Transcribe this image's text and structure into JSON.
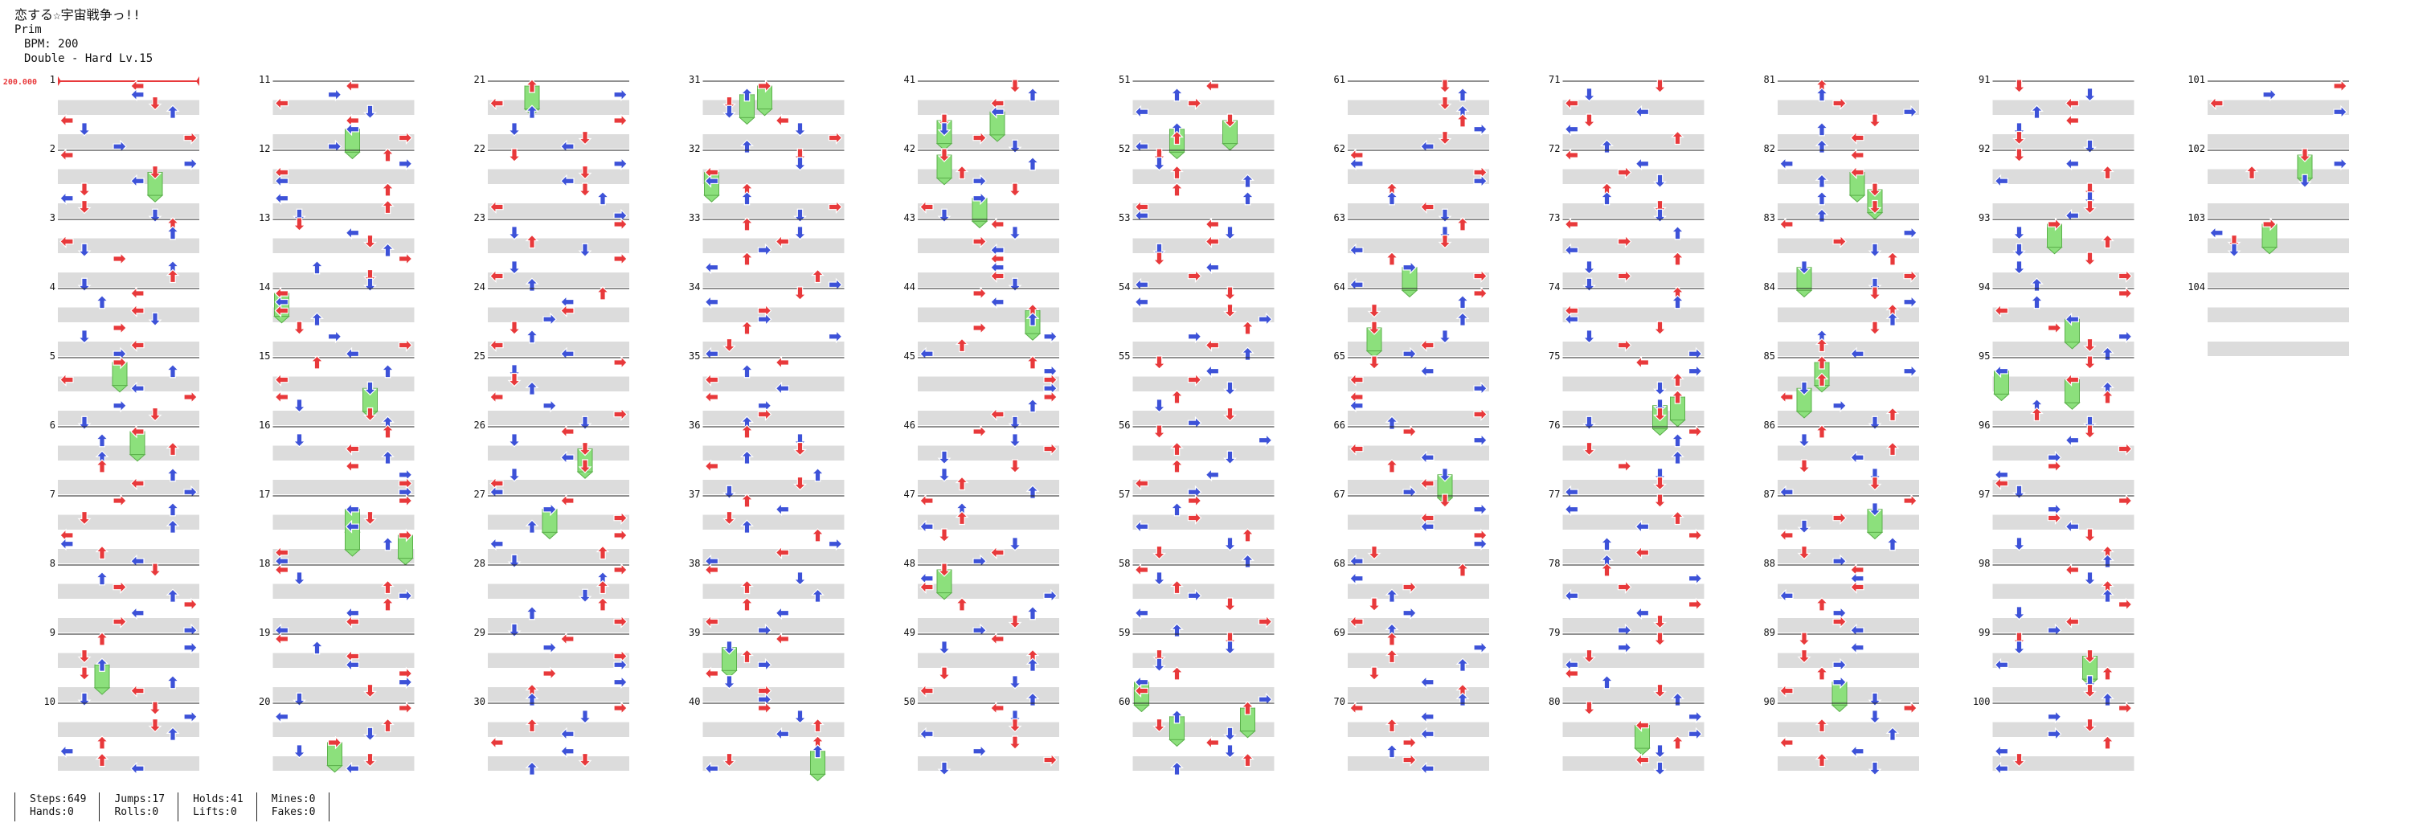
{
  "header": {
    "title": "恋する☆宇宙戦争っ!!",
    "artist": "Prim",
    "bpm": "BPM: 200",
    "difficulty": "Double - Hard Lv.15"
  },
  "bpm_marker": "200.000",
  "colors": {
    "red": "#e8393b",
    "blue": "#3d52d8",
    "hold": "#8ce07c",
    "stripe": "#dcdcdc",
    "line": "#222222"
  },
  "measure_labels": [
    "1",
    "2",
    "3",
    "4",
    "5",
    "6",
    "7",
    "8",
    "9",
    "10",
    "11",
    "12",
    "13",
    "14",
    "15",
    "16",
    "17",
    "18",
    "19",
    "20",
    "21",
    "22",
    "23",
    "24",
    "25",
    "26",
    "27",
    "28",
    "29",
    "30",
    "31",
    "32",
    "33",
    "34",
    "35",
    "36",
    "37",
    "38",
    "39",
    "40",
    "41",
    "42",
    "43",
    "44",
    "45",
    "46",
    "47",
    "48",
    "49",
    "50",
    "51",
    "52",
    "53",
    "54",
    "55",
    "56",
    "57",
    "58",
    "59",
    "60",
    "61",
    "62",
    "63",
    "64",
    "65",
    "66",
    "67",
    "68",
    "69",
    "70",
    "71",
    "72",
    "73",
    "74",
    "75",
    "76",
    "77",
    "78",
    "79",
    "80",
    "81",
    "82",
    "83",
    "84",
    "85",
    "86",
    "87",
    "88",
    "89",
    "90",
    "91",
    "92",
    "93",
    "94",
    "95",
    "96",
    "97",
    "98",
    "99",
    "100",
    "101",
    "102",
    "103",
    "104"
  ],
  "stats": {
    "steps": "Steps:649",
    "hands": "Hands:0",
    "jumps": "Jumps:17",
    "rolls": "Rolls:0",
    "holds": "Holds:41",
    "lifts": "Lifts:0",
    "mines": "Mines:0",
    "fakes": "Fakes:0"
  }
}
